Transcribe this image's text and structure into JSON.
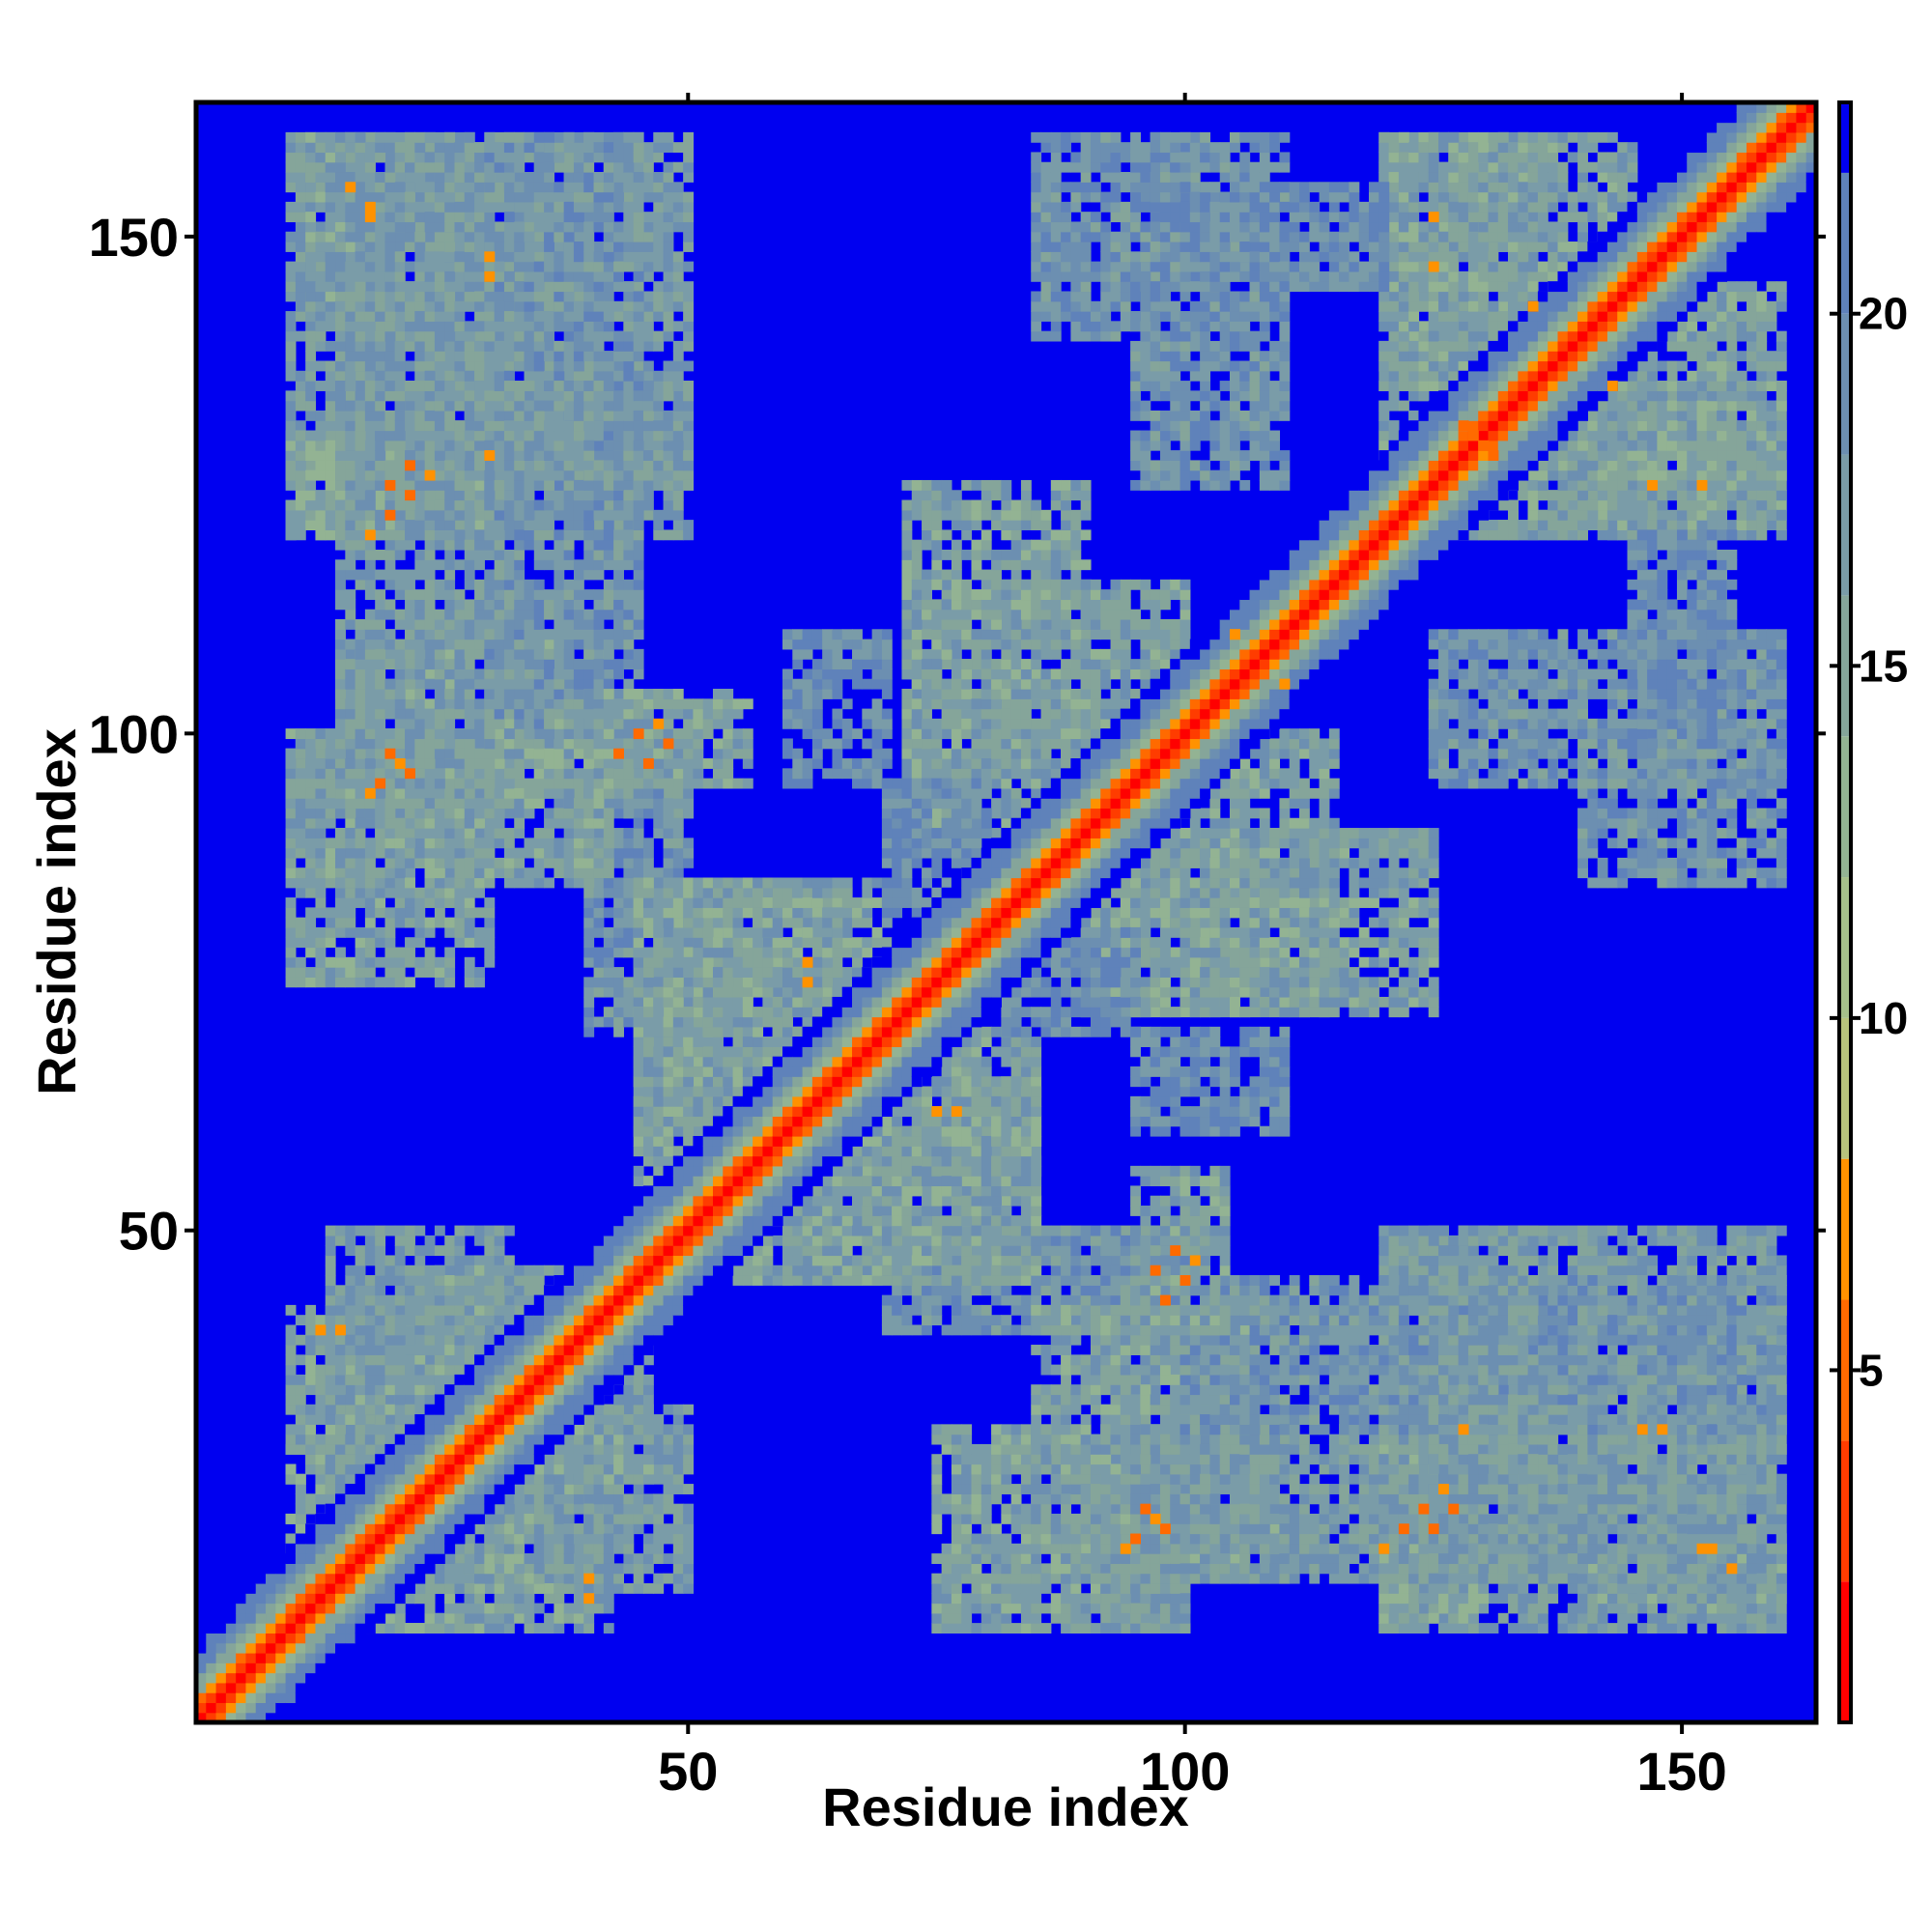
{
  "chart_data": {
    "type": "heatmap",
    "xlabel": "Residue index",
    "ylabel": "Residue index",
    "n_residues": 163,
    "xlim": [
      1,
      163
    ],
    "ylim": [
      1,
      163
    ],
    "x_ticks": [
      50,
      100,
      150
    ],
    "y_ticks": [
      50,
      100,
      150
    ],
    "colorbar": {
      "range": [
        0,
        23
      ],
      "ticks": [
        5,
        10,
        15,
        20
      ],
      "bands": [
        {
          "from": 0,
          "to": 2,
          "color": "#ff0000"
        },
        {
          "from": 2,
          "to": 4,
          "color": "#ff3c00"
        },
        {
          "from": 4,
          "to": 6,
          "color": "#ff6a00"
        },
        {
          "from": 6,
          "to": 8,
          "color": "#ff9200"
        },
        {
          "from": 8,
          "to": 10,
          "color": "#b7c37c"
        },
        {
          "from": 10,
          "to": 12,
          "color": "#a5bf8a"
        },
        {
          "from": 12,
          "to": 14,
          "color": "#93b393"
        },
        {
          "from": 14,
          "to": 16,
          "color": "#85a59a"
        },
        {
          "from": 16,
          "to": 18,
          "color": "#7a9ca8"
        },
        {
          "from": 18,
          "to": 20,
          "color": "#6c8fb1"
        },
        {
          "from": 20,
          "to": 22,
          "color": "#5f82ba"
        },
        {
          "from": 22,
          "to": 23,
          "color": "#0000f0"
        }
      ]
    },
    "background_color": "#0000f0",
    "contact_blocks": [
      {
        "x": [
          10,
          28
        ],
        "y": [
          10,
          28
        ],
        "value": 14
      },
      {
        "x": [
          14,
          42
        ],
        "y": [
          14,
          42
        ],
        "value": 16
      },
      {
        "x": [
          28,
          42
        ],
        "y": [
          10,
          28
        ],
        "value": 15
      },
      {
        "x": [
          14,
          32
        ],
        "y": [
          35,
          50
        ],
        "value": 16
      },
      {
        "x": [
          30,
          46
        ],
        "y": [
          25,
          40
        ],
        "value": 15
      },
      {
        "x": [
          75,
          100
        ],
        "y": [
          10,
          30
        ],
        "value": 15
      },
      {
        "x": [
          92,
          100
        ],
        "y": [
          10,
          50
        ],
        "value": 16
      },
      {
        "x": [
          70,
          100
        ],
        "y": [
          40,
          50
        ],
        "value": 17
      },
      {
        "x": [
          120,
          160
        ],
        "y": [
          10,
          50
        ],
        "value": 16
      },
      {
        "x": [
          120,
          130
        ],
        "y": [
          10,
          30
        ],
        "value": 14
      },
      {
        "x": [
          140,
          160
        ],
        "y": [
          12,
          18
        ],
        "value": 15
      },
      {
        "x": [
          15,
          42
        ],
        "y": [
          85,
          110
        ],
        "value": 15
      },
      {
        "x": [
          15,
          30
        ],
        "y": [
          95,
          160
        ],
        "value": 16
      },
      {
        "x": [
          30,
          45
        ],
        "y": [
          100,
          160
        ],
        "value": 17
      },
      {
        "x": [
          15,
          50
        ],
        "y": [
          125,
          135
        ],
        "value": 16
      },
      {
        "x": [
          40,
          56
        ],
        "y": [
          95,
          104
        ],
        "value": 15
      },
      {
        "x": [
          72,
          90
        ],
        "y": [
          95,
          125
        ],
        "value": 15
      },
      {
        "x": [
          90,
          115
        ],
        "y": [
          72,
          100
        ],
        "value": 15
      },
      {
        "x": [
          95,
          110
        ],
        "y": [
          125,
          160
        ],
        "value": 17
      },
      {
        "x": [
          120,
          160
        ],
        "y": [
          120,
          135
        ],
        "value": 15
      },
      {
        "x": [
          120,
          145
        ],
        "y": [
          135,
          160
        ],
        "value": 15
      },
      {
        "x": [
          140,
          160
        ],
        "y": [
          85,
          100
        ],
        "value": 17
      },
      {
        "x": [
          145,
          155
        ],
        "y": [
          100,
          120
        ],
        "value": 18
      },
      {
        "x": [
          45,
          70
        ],
        "y": [
          55,
          85
        ],
        "value": 15
      },
      {
        "x": [
          60,
          85
        ],
        "y": [
          45,
          65
        ],
        "value": 15
      },
      {
        "x": [
          95,
          110
        ],
        "y": [
          60,
          70
        ],
        "value": 18
      },
      {
        "x": [
          70,
          80
        ],
        "y": [
          82,
          95
        ],
        "value": 18
      }
    ],
    "contact_points": [
      {
        "x": 20,
        "y": 98,
        "value": 5
      },
      {
        "x": 22,
        "y": 96,
        "value": 5
      },
      {
        "x": 18,
        "y": 94,
        "value": 6
      },
      {
        "x": 20,
        "y": 122,
        "value": 5
      },
      {
        "x": 22,
        "y": 124,
        "value": 5
      },
      {
        "x": 24,
        "y": 126,
        "value": 6
      },
      {
        "x": 16,
        "y": 155,
        "value": 6
      },
      {
        "x": 18,
        "y": 153,
        "value": 6
      },
      {
        "x": 30,
        "y": 128,
        "value": 6
      },
      {
        "x": 30,
        "y": 146,
        "value": 6
      },
      {
        "x": 43,
        "y": 98,
        "value": 5
      },
      {
        "x": 45,
        "y": 100,
        "value": 5
      },
      {
        "x": 47,
        "y": 101,
        "value": 6
      },
      {
        "x": 97,
        "y": 46,
        "value": 5
      },
      {
        "x": 99,
        "y": 48,
        "value": 5
      },
      {
        "x": 95,
        "y": 19,
        "value": 5
      },
      {
        "x": 97,
        "y": 21,
        "value": 6
      },
      {
        "x": 125,
        "y": 20,
        "value": 5
      },
      {
        "x": 127,
        "y": 22,
        "value": 5
      },
      {
        "x": 120,
        "y": 18,
        "value": 6
      },
      {
        "x": 152,
        "y": 18,
        "value": 6
      },
      {
        "x": 148,
        "y": 30,
        "value": 6
      },
      {
        "x": 129,
        "y": 130,
        "value": 5
      },
      {
        "x": 131,
        "y": 128,
        "value": 5
      },
      {
        "x": 147,
        "y": 125,
        "value": 6
      },
      {
        "x": 125,
        "y": 152,
        "value": 6
      },
      {
        "x": 135,
        "y": 143,
        "value": 6
      },
      {
        "x": 13,
        "y": 40,
        "value": 6
      },
      {
        "x": 40,
        "y": 15,
        "value": 6
      },
      {
        "x": 62,
        "y": 75,
        "value": 6
      },
      {
        "x": 77,
        "y": 62,
        "value": 6
      },
      {
        "x": 105,
        "y": 110,
        "value": 6
      },
      {
        "x": 110,
        "y": 105,
        "value": 6
      }
    ]
  }
}
